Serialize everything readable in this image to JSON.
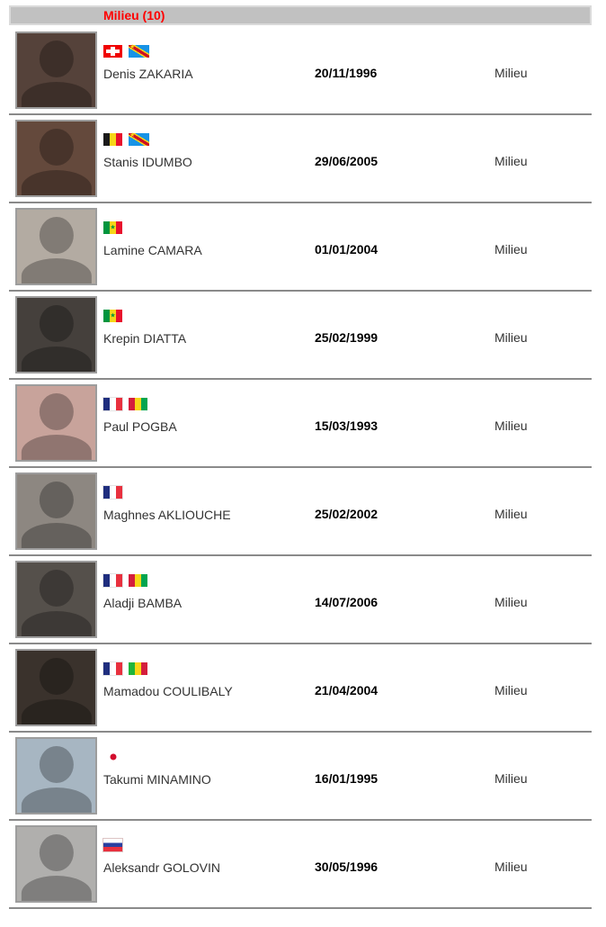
{
  "header": {
    "label": "Milieu (10)"
  },
  "colors": {
    "header_bg": "#c1c1c1",
    "header_text": "#ff0000",
    "separator": "#8a8a8a"
  },
  "players": [
    {
      "name": "Denis ZAKARIA",
      "birth_date": "20/11/1996",
      "position": "Milieu",
      "photo_tone": "#55423a",
      "flags": [
        {
          "code": "ch",
          "country": "Switzerland"
        },
        {
          "code": "cd",
          "country": "DR Congo"
        }
      ]
    },
    {
      "name": "Stanis IDUMBO",
      "birth_date": "29/06/2005",
      "position": "Milieu",
      "photo_tone": "#64493c",
      "flags": [
        {
          "code": "be",
          "country": "Belgium"
        },
        {
          "code": "cd",
          "country": "DR Congo"
        }
      ]
    },
    {
      "name": "Lamine CAMARA",
      "birth_date": "01/01/2004",
      "position": "Milieu",
      "photo_tone": "#b3aba2",
      "flags": [
        {
          "code": "sn",
          "country": "Senegal"
        }
      ]
    },
    {
      "name": "Krepin DIATTA",
      "birth_date": "25/02/1999",
      "position": "Milieu",
      "photo_tone": "#45403c",
      "flags": [
        {
          "code": "sn",
          "country": "Senegal"
        }
      ]
    },
    {
      "name": "Paul POGBA",
      "birth_date": "15/03/1993",
      "position": "Milieu",
      "photo_tone": "#c8a39b",
      "flags": [
        {
          "code": "fr",
          "country": "France"
        },
        {
          "code": "gn",
          "country": "Guinea"
        }
      ]
    },
    {
      "name": "Maghnes AKLIOUCHE",
      "birth_date": "25/02/2002",
      "position": "Milieu",
      "photo_tone": "#8d8781",
      "flags": [
        {
          "code": "fr",
          "country": "France"
        }
      ]
    },
    {
      "name": "Aladji BAMBA",
      "birth_date": "14/07/2006",
      "position": "Milieu",
      "photo_tone": "#55504b",
      "flags": [
        {
          "code": "fr",
          "country": "France"
        },
        {
          "code": "gn",
          "country": "Guinea"
        }
      ]
    },
    {
      "name": "Mamadou COULIBALY",
      "birth_date": "21/04/2004",
      "position": "Milieu",
      "photo_tone": "#3a322c",
      "flags": [
        {
          "code": "fr",
          "country": "France"
        },
        {
          "code": "ml",
          "country": "Mali"
        }
      ]
    },
    {
      "name": "Takumi MINAMINO",
      "birth_date": "16/01/1995",
      "position": "Milieu",
      "photo_tone": "#a7b6c2",
      "flags": [
        {
          "code": "jp",
          "country": "Japan"
        }
      ]
    },
    {
      "name": "Aleksandr GOLOVIN",
      "birth_date": "30/05/1996",
      "position": "Milieu",
      "photo_tone": "#b0afad",
      "flags": [
        {
          "code": "ru",
          "country": "Russia"
        }
      ]
    }
  ]
}
